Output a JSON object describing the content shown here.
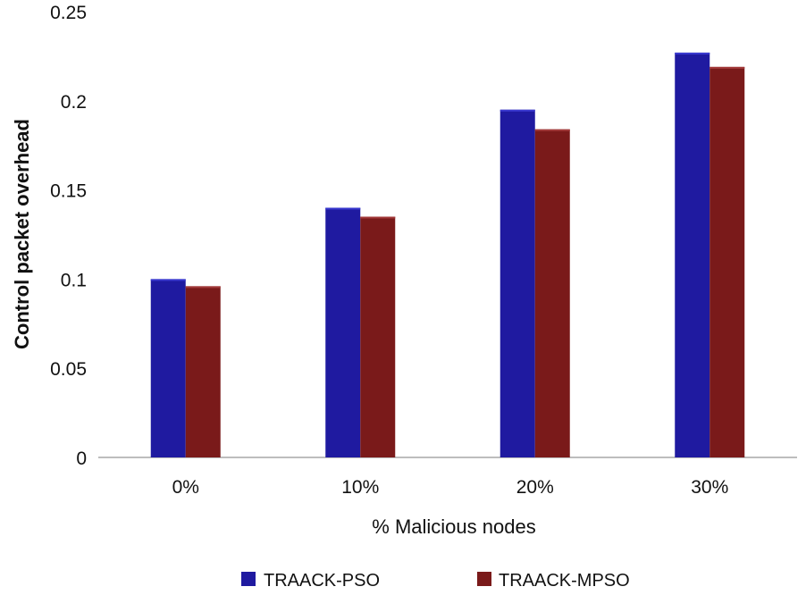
{
  "chart_data": {
    "type": "bar",
    "xlabel": "% Malicious nodes",
    "ylabel": "Control packet overhead",
    "categories": [
      "0%",
      "10%",
      "20%",
      "30%"
    ],
    "yticks": [
      "0",
      "0.05",
      "0.1",
      "0.15",
      "0.2",
      "0.25"
    ],
    "ylim": [
      0,
      0.25
    ],
    "grid": false,
    "legend_position": "bottom",
    "series": [
      {
        "name": "TRAACK-PSO",
        "color": "#1f1aa0",
        "values": [
          0.1,
          0.14,
          0.195,
          0.227
        ]
      },
      {
        "name": "TRAACK-MPSO",
        "color": "#7a1a1a",
        "values": [
          0.096,
          0.135,
          0.184,
          0.219
        ]
      }
    ]
  }
}
